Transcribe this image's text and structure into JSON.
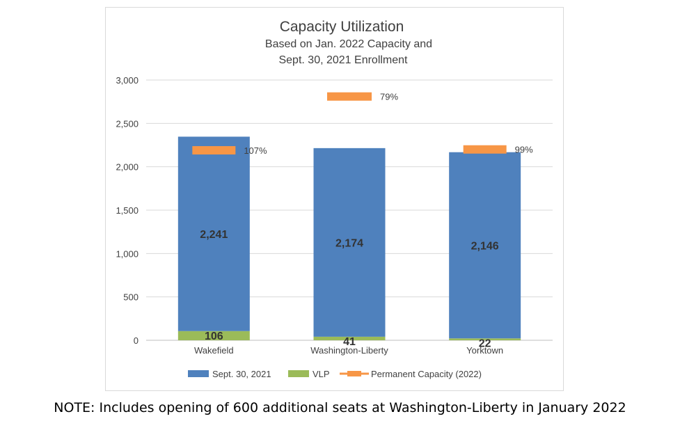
{
  "chart_data": {
    "type": "bar",
    "stacked": true,
    "title": "Capacity Utilization",
    "subtitle_lines": [
      "Based on Jan. 2022 Capacity and",
      "Sept. 30, 2021 Enrollment"
    ],
    "categories": [
      "Wakefield",
      "Washington-Liberty",
      "Yorktown"
    ],
    "series": [
      {
        "name": "Sept. 30, 2021",
        "values": [
          2241,
          2174,
          2146
        ],
        "labels": [
          "2,241",
          "2,174",
          "2,146"
        ],
        "color": "#4f81bd"
      },
      {
        "name": "VLP",
        "values": [
          106,
          41,
          22
        ],
        "labels": [
          "106",
          "41",
          "22"
        ],
        "color": "#9bbb59"
      }
    ],
    "capacity": {
      "name": "Permanent Capacity (2022)",
      "values": [
        2190,
        2810,
        2200
      ],
      "labels": [
        "107%",
        "79%",
        "99%"
      ],
      "color": "#f79646"
    },
    "ylim": [
      0,
      3000
    ],
    "yticks": [
      0,
      500,
      1000,
      1500,
      2000,
      2500,
      3000
    ],
    "ytick_labels": [
      "0",
      "500",
      "1,000",
      "1,500",
      "2,000",
      "2,500",
      "3,000"
    ],
    "grid": true,
    "legend_position": "bottom"
  },
  "note": "NOTE: Includes opening of 600 additional seats at Washington-Liberty in January 2022"
}
